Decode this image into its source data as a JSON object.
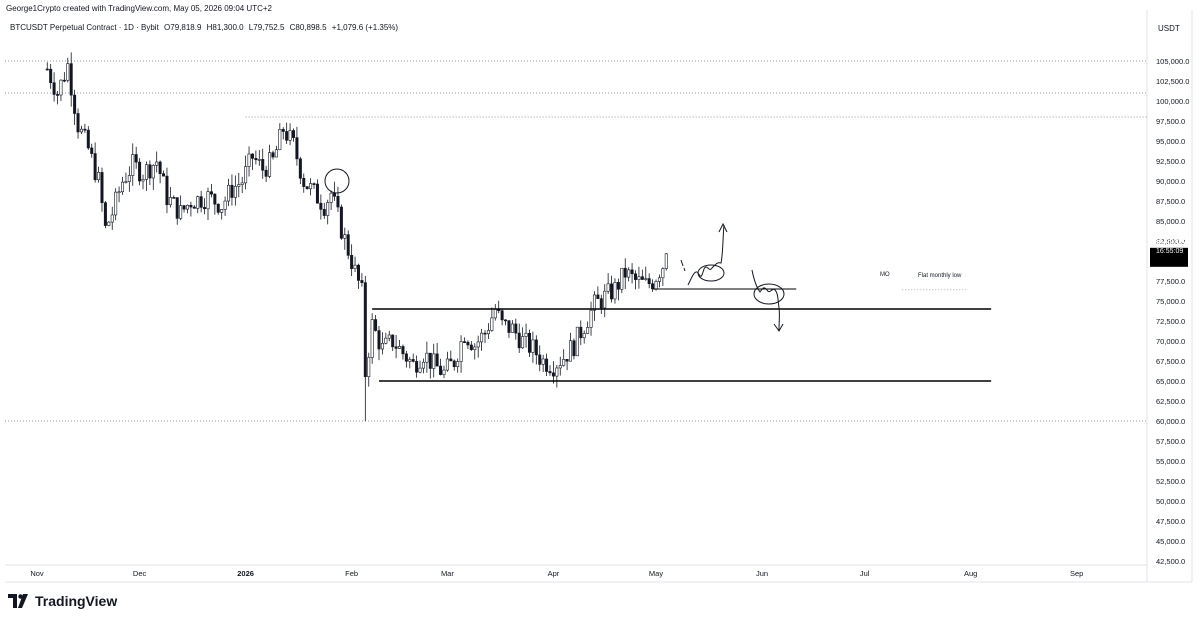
{
  "header": {
    "attribution": "George1Crypto created with TradingView.com, May 05, 2026 09:04 UTC+2"
  },
  "legend": {
    "symbol": "BTCUSDT Perpetual Contract · 1D · Bybit",
    "open": "O79,818.9",
    "high": "H81,300.0",
    "low": "L79,752.5",
    "close": "C80,898.5",
    "change": "+1,079.6 (+1.35%)"
  },
  "price_axis": {
    "unit": "USDT",
    "current_price": "80,898.5",
    "countdown": "16:55:09"
  },
  "annotations": {
    "mo": "MO",
    "flat_monthly_low": "Flat monthly low"
  },
  "brand": {
    "name": "TradingView"
  },
  "colors": {
    "up": "#131722",
    "down": "#131722",
    "level_line": "#000000",
    "dotted_line": "#787b86",
    "price_tag_bg": "#000000"
  },
  "chart_data": {
    "type": "candlestick",
    "title": "BTCUSDT Perpetual Contract · 1D · Bybit",
    "ylim": [
      42500,
      107500
    ],
    "y_ticks": [
      105000,
      102500,
      100000,
      97500,
      95000,
      92500,
      90000,
      87500,
      85000,
      82500,
      77500,
      75000,
      72500,
      70000,
      67500,
      65000,
      62500,
      60000,
      57500,
      55000,
      52500,
      50000,
      47500,
      45000,
      42500
    ],
    "y_tick_labels": [
      "105,000.0",
      "102,500.0",
      "100,000.0",
      "97,500.0",
      "95,000.0",
      "92,500.0",
      "90,000.0",
      "87,500.0",
      "85,000.0",
      "82,500.0",
      "77,500.0",
      "75,000.0",
      "72,500.0",
      "70,000.0",
      "67,500.0",
      "65,000.0",
      "62,500.0",
      "60,000.0",
      "57,500.0",
      "55,000.0",
      "52,500.0",
      "50,000.0",
      "47,500.0",
      "45,000.0",
      "42,500.0"
    ],
    "x_labels": [
      "Nov",
      "Dec",
      "2026",
      "Feb",
      "Mar",
      "Apr",
      "May",
      "Jun",
      "Jul",
      "Aug",
      "Sep"
    ],
    "x_label_days": [
      0,
      30,
      61,
      92,
      120,
      151,
      181,
      212,
      242,
      273,
      304
    ],
    "close_path": [
      [
        3,
        104000
      ],
      [
        6,
        101000
      ],
      [
        9,
        104500
      ],
      [
        12,
        97000
      ],
      [
        15,
        94000
      ],
      [
        18,
        90000
      ],
      [
        20,
        84000
      ],
      [
        22,
        86000
      ],
      [
        25,
        90000
      ],
      [
        28,
        92000
      ],
      [
        31,
        91000
      ],
      [
        35,
        92500
      ],
      [
        38,
        88000
      ],
      [
        42,
        86000
      ],
      [
        45,
        87500
      ],
      [
        50,
        88000
      ],
      [
        54,
        87000
      ],
      [
        57,
        89000
      ],
      [
        60,
        90000
      ],
      [
        63,
        93000
      ],
      [
        66,
        91500
      ],
      [
        69,
        92500
      ],
      [
        72,
        96500
      ],
      [
        75,
        94500
      ],
      [
        78,
        90000
      ],
      [
        81,
        88500
      ],
      [
        84,
        87000
      ],
      [
        86,
        88500
      ],
      [
        89,
        84000
      ],
      [
        92,
        80000
      ],
      [
        95,
        76000
      ],
      [
        96,
        66000
      ],
      [
        98,
        72000
      ],
      [
        101,
        69000
      ],
      [
        104,
        70000
      ],
      [
        107,
        68500
      ],
      [
        110,
        67000
      ],
      [
        113,
        68500
      ],
      [
        116,
        67000
      ],
      [
        119,
        66000
      ],
      [
        122,
        67500
      ],
      [
        125,
        71000
      ],
      [
        128,
        69500
      ],
      [
        131,
        71000
      ],
      [
        134,
        74000
      ],
      [
        136,
        72000
      ],
      [
        139,
        71500
      ],
      [
        142,
        70000
      ],
      [
        145,
        69000
      ],
      [
        148,
        67500
      ],
      [
        151,
        67000
      ],
      [
        154,
        68000
      ],
      [
        157,
        69500
      ],
      [
        160,
        72000
      ],
      [
        163,
        74500
      ],
      [
        166,
        75500
      ],
      [
        169,
        76500
      ],
      [
        172,
        78500
      ],
      [
        175,
        77500
      ],
      [
        178,
        77000
      ],
      [
        180,
        77500
      ],
      [
        183,
        79500
      ],
      [
        184,
        80898.5
      ]
    ],
    "extremes": {
      "all_time_high_line": 105000,
      "high_line": 101000,
      "feb_low_line": 60000,
      "dotted_high": 98000
    },
    "levels": [
      {
        "name": "MO",
        "value": 76500,
        "start_day": 180,
        "end_day": 222
      },
      {
        "name": "range-high",
        "value": 74000,
        "start_day": 98,
        "end_day": 279
      },
      {
        "name": "range-low",
        "value": 65000,
        "start_day": 100,
        "end_day": 279
      }
    ]
  }
}
